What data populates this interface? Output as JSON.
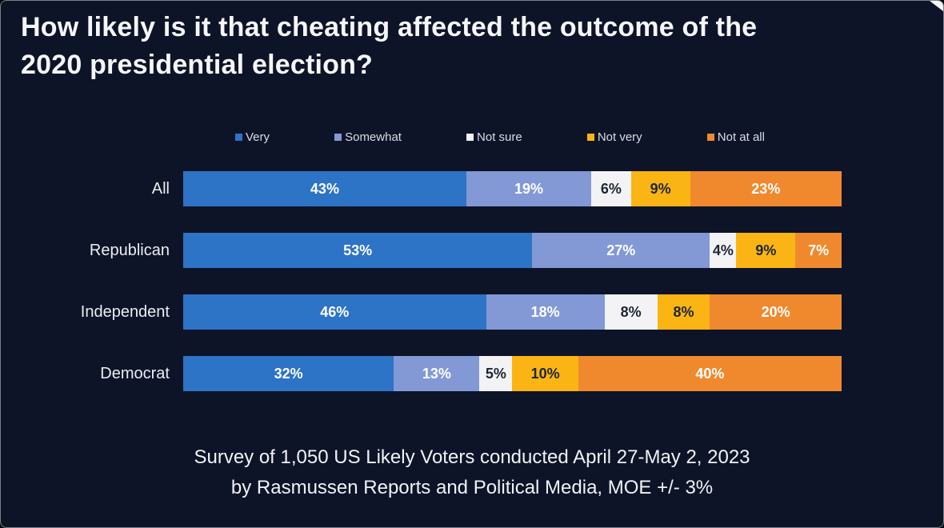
{
  "title": "How likely is it that cheating affected the outcome of the\n2020 presidential election?",
  "footer": "Survey of 1,050 US Likely Voters conducted April 27-May 2, 2023\nby Rasmussen Reports and Political Media, MOE +/- 3%",
  "colors": {
    "background": "#0e1428",
    "title_text": "#f5f6f9",
    "label_text": "#eceef3",
    "dark_value_text": "#1e2535",
    "light_value_text": "#ffffff"
  },
  "chart_data": {
    "type": "bar",
    "stacked": true,
    "orientation": "horizontal",
    "title": "How likely is it that cheating affected the outcome of the 2020 presidential election?",
    "categories": [
      "All",
      "Republican",
      "Independent",
      "Democrat"
    ],
    "series": [
      {
        "name": "Very",
        "color": "#2d73c6",
        "text_color": "#ffffff",
        "values": [
          43,
          53,
          46,
          32
        ]
      },
      {
        "name": "Somewhat",
        "color": "#8299d5",
        "text_color": "#ffffff",
        "values": [
          19,
          27,
          18,
          13
        ]
      },
      {
        "name": "Not sure",
        "color": "#f3f3f5",
        "text_color": "#1e2535",
        "values": [
          6,
          4,
          8,
          5
        ]
      },
      {
        "name": "Not very",
        "color": "#fab514",
        "text_color": "#1e2535",
        "values": [
          9,
          9,
          8,
          10
        ]
      },
      {
        "name": "Not at all",
        "color": "#f0892d",
        "text_color": "#ffffff",
        "values": [
          23,
          7,
          20,
          40
        ]
      }
    ],
    "value_suffix": "%",
    "xlim": [
      0,
      100
    ],
    "xlabel": "",
    "ylabel": "",
    "grid": false,
    "legend_position": "top"
  }
}
